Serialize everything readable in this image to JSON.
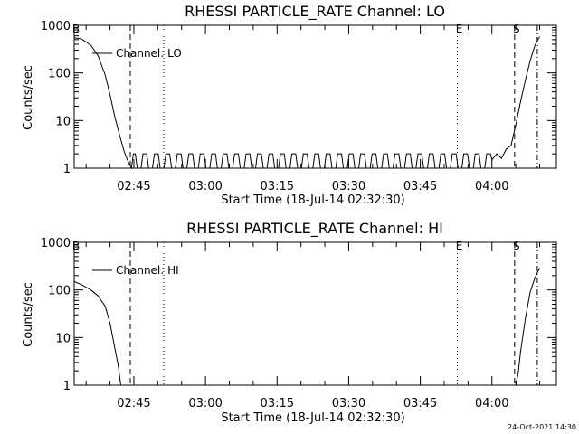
{
  "footer_stamp": "24-Oct-2021 14:30",
  "chart_data": [
    {
      "type": "line",
      "title": "RHESSI PARTICLE_RATE Channel: LO",
      "xlabel": "Start Time (18-Jul-14 02:32:30)",
      "ylabel": "Counts/sec",
      "y_scale": "log",
      "ylim": [
        1,
        1000
      ],
      "xlim": [
        "02:32:30",
        "04:13:30"
      ],
      "x_ticks": [
        "02:45",
        "03:00",
        "03:15",
        "03:30",
        "03:45",
        "04:00"
      ],
      "y_ticks": [
        "1",
        "10",
        "100",
        "1000"
      ],
      "legend": {
        "label": "Channel: LO",
        "placement": "top-left"
      },
      "markers": [
        {
          "label": "B",
          "time": "02:32:30",
          "style": "dashed"
        },
        {
          "label": "",
          "time": "02:44:15",
          "style": "dashed"
        },
        {
          "label": "",
          "time": "02:51:15",
          "style": "dotted"
        },
        {
          "label": "E",
          "time": "03:52:45",
          "style": "dotted"
        },
        {
          "label": "S",
          "time": "04:04:45",
          "style": "dashed"
        },
        {
          "label": "",
          "time": "04:09:30",
          "style": "dash-dot"
        }
      ],
      "series": [
        {
          "name": "Channel: LO",
          "x": [
            "02:32:30",
            "02:34:00",
            "02:36:00",
            "02:37:30",
            "02:39:00",
            "02:40:00",
            "02:41:00",
            "02:42:00",
            "02:43:00",
            "02:43:45",
            "02:44:30",
            "04:00:00",
            "04:01:00",
            "04:02:00",
            "04:03:00",
            "04:04:00",
            "04:05:00",
            "04:06:00",
            "04:07:00",
            "04:08:00",
            "04:09:00",
            "04:10:00"
          ],
          "y": [
            550,
            520,
            380,
            230,
            90,
            35,
            12,
            5,
            2.2,
            1.4,
            1,
            1.5,
            2,
            1.6,
            2.5,
            3,
            8,
            25,
            70,
            180,
            380,
            580
          ],
          "noise_floor": {
            "from": "02:44:30",
            "to": "04:00:00",
            "values": [
              1,
              2
            ],
            "note": "alternating between 1 and 2 counts/sec"
          }
        }
      ]
    },
    {
      "type": "line",
      "title": "RHESSI PARTICLE_RATE Channel: HI",
      "xlabel": "Start Time (18-Jul-14 02:32:30)",
      "ylabel": "Counts/sec",
      "y_scale": "log",
      "ylim": [
        1,
        1000
      ],
      "xlim": [
        "02:32:30",
        "04:13:30"
      ],
      "x_ticks": [
        "02:45",
        "03:00",
        "03:15",
        "03:30",
        "03:45",
        "04:00"
      ],
      "y_ticks": [
        "1",
        "10",
        "100",
        "1000"
      ],
      "legend": {
        "label": "Channel: HI",
        "placement": "top-left"
      },
      "markers": [
        {
          "label": "B",
          "time": "02:32:30",
          "style": "dashed"
        },
        {
          "label": "",
          "time": "02:44:15",
          "style": "dashed"
        },
        {
          "label": "",
          "time": "02:51:15",
          "style": "dotted"
        },
        {
          "label": "E",
          "time": "03:52:45",
          "style": "dotted"
        },
        {
          "label": "S",
          "time": "04:04:45",
          "style": "dashed"
        },
        {
          "label": "",
          "time": "04:09:30",
          "style": "dash-dot"
        }
      ],
      "series": [
        {
          "name": "Channel: HI",
          "x": [
            "02:32:30",
            "02:34:00",
            "02:36:00",
            "02:37:30",
            "02:39:00",
            "02:40:00",
            "02:41:00",
            "02:41:45",
            "02:42:15",
            "04:05:00",
            "04:05:30",
            "04:06:00",
            "04:07:00",
            "04:08:00",
            "04:09:00",
            "04:10:00"
          ],
          "y": [
            150,
            130,
            100,
            75,
            45,
            20,
            6,
            2.5,
            1,
            1,
            1.8,
            5,
            25,
            90,
            180,
            290
          ]
        }
      ]
    }
  ]
}
